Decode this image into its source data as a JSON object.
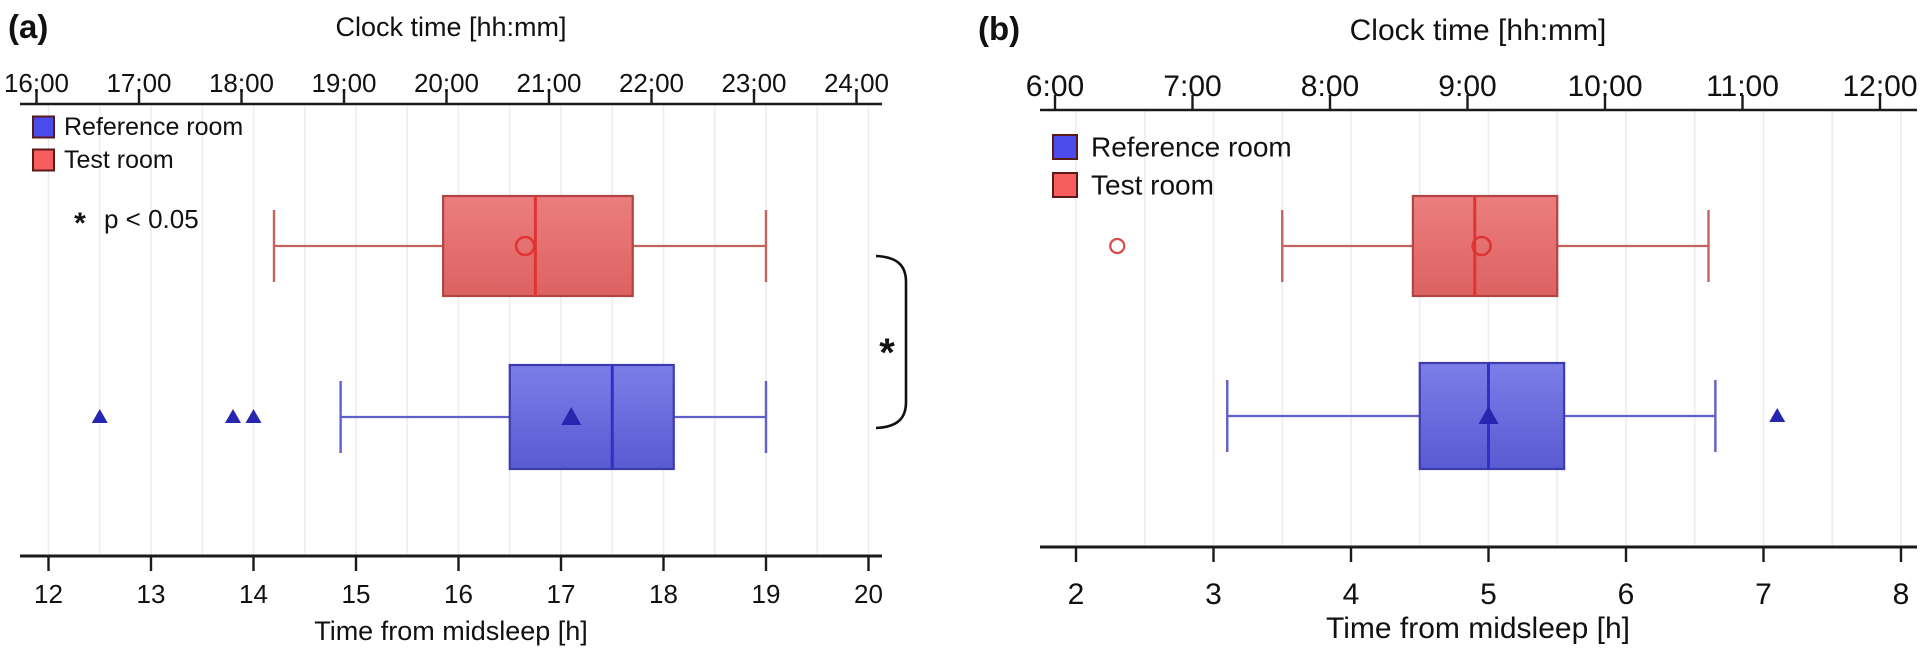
{
  "figure": {
    "background": "#ffffff",
    "panel_labels": [
      "(a)",
      "(b)"
    ]
  },
  "colors": {
    "reference": {
      "legend": "#4b4bec",
      "fill_top": "#7d7de9",
      "fill_bottom": "#5a5ad2",
      "border": "#3c3cae",
      "median": "#3030c6",
      "whisker": "#6060cc",
      "marker": "#2626b0"
    },
    "test": {
      "legend": "#f75d5d",
      "fill_top": "#ec7e7e",
      "fill_bottom": "#dd6262",
      "border": "#b24444",
      "median": "#e03434",
      "whisker": "#c4645f",
      "marker": "#d84a4a"
    },
    "grid": "#ededed",
    "axis": "#1a1a1a",
    "text": "#111111"
  },
  "chart_data": [
    {
      "type": "boxplot",
      "orientation": "horizontal",
      "panel_label": "(a)",
      "title_top": "Clock time [hh:mm]",
      "xlabel_bottom": "Time from midsleep [h]",
      "x_top_ticks": [
        "16:00",
        "17:00",
        "18:00",
        "19:00",
        "20:00",
        "21:00",
        "22:00",
        "23:00",
        "24:00"
      ],
      "x_bottom_ticks": [
        "12",
        "13",
        "14",
        "15",
        "16",
        "17",
        "18",
        "19",
        "20"
      ],
      "x_bottom_range": [
        12,
        20
      ],
      "grid": "vertical, every 0.5 h",
      "legend": [
        {
          "label": "Reference room",
          "color_key": "reference"
        },
        {
          "label": "Test room",
          "color_key": "test"
        }
      ],
      "annotation_p_note": "* p < 0.05",
      "significance_bracket_label": "*",
      "series": [
        {
          "name": "Test room",
          "color_key": "test",
          "row": "top",
          "whisker_low": 14.2,
          "q1": 15.85,
          "median": 16.75,
          "mean": 16.65,
          "q3": 17.7,
          "whisker_high": 19.0,
          "outliers": [],
          "mean_marker": "open-circle",
          "outlier_marker": "open-circle"
        },
        {
          "name": "Reference room",
          "color_key": "reference",
          "row": "bottom",
          "whisker_low": 14.85,
          "q1": 16.5,
          "median": 17.5,
          "mean": 17.1,
          "q3": 18.1,
          "whisker_high": 19.0,
          "outliers": [
            12.5,
            13.8,
            14.0
          ],
          "mean_marker": "filled-triangle",
          "outlier_marker": "filled-triangle"
        }
      ]
    },
    {
      "type": "boxplot",
      "orientation": "horizontal",
      "panel_label": "(b)",
      "title_top": "Clock time [hh:mm]",
      "xlabel_bottom": "Time from midsleep [h]",
      "x_top_ticks": [
        "6:00",
        "7:00",
        "8:00",
        "9:00",
        "10:00",
        "11:00",
        "12:00"
      ],
      "x_bottom_ticks": [
        "2",
        "3",
        "4",
        "5",
        "6",
        "7",
        "8"
      ],
      "x_bottom_range": [
        2,
        8
      ],
      "grid": "vertical, every 0.5 h",
      "legend": [
        {
          "label": "Reference room",
          "color_key": "reference"
        },
        {
          "label": "Test room",
          "color_key": "test"
        }
      ],
      "annotation_p_note": null,
      "significance_bracket_label": null,
      "series": [
        {
          "name": "Test room",
          "color_key": "test",
          "row": "top",
          "whisker_low": 3.5,
          "q1": 4.45,
          "median": 4.9,
          "mean": 4.95,
          "q3": 5.5,
          "whisker_high": 6.6,
          "outliers": [
            2.3
          ],
          "mean_marker": "open-circle",
          "outlier_marker": "open-circle"
        },
        {
          "name": "Reference room",
          "color_key": "reference",
          "row": "bottom",
          "whisker_low": 3.1,
          "q1": 4.5,
          "median": 5.0,
          "mean": 5.0,
          "q3": 5.55,
          "whisker_high": 6.65,
          "outliers": [
            7.1
          ],
          "mean_marker": "filled-triangle",
          "outlier_marker": "filled-triangle"
        }
      ]
    }
  ]
}
